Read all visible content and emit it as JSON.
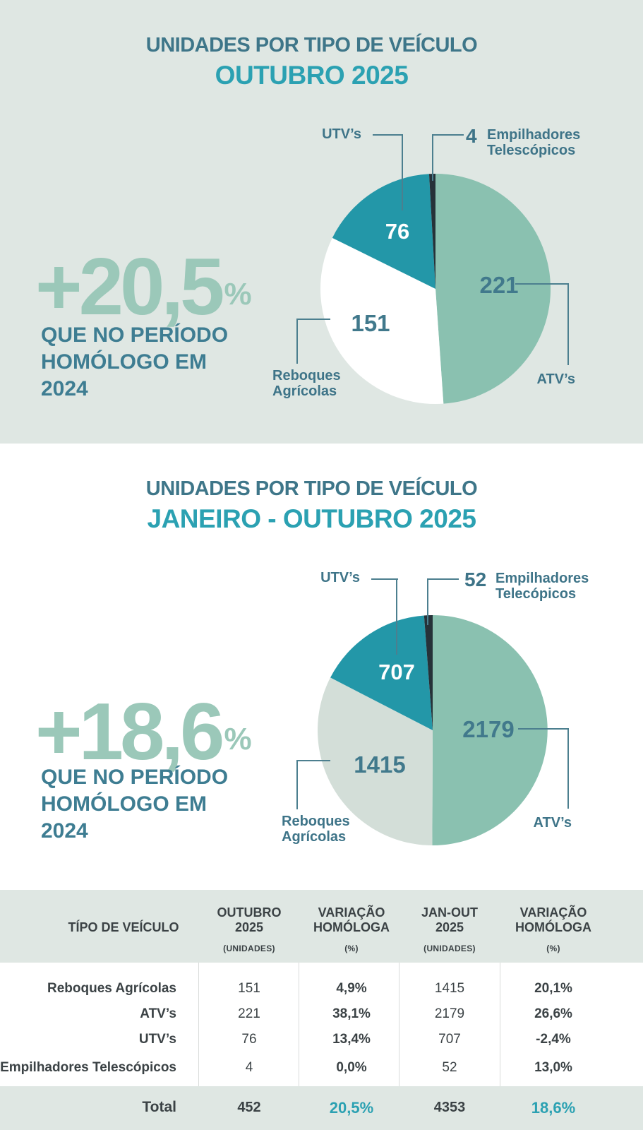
{
  "colors": {
    "panel_background": "#dfe7e3",
    "accent_teal": "#2ba1b2",
    "dark_teal_text": "#3e7689",
    "pale_green_stat": "#9bc8b9",
    "slice_atv": "#8ac1b0",
    "slice_utv": "#2397a8",
    "slice_empilhadores": "#263239",
    "slice_reboques_october": "#ffffff",
    "slice_reboques_ytd": "#d3ded8",
    "callout_line": "#4c7f8f",
    "table_text": "#3b4245"
  },
  "sections": [
    {
      "title_line1": "UNIDADES POR TIPO DE VEÍCULO",
      "title_line2": "OUTUBRO 2025",
      "stat_value": "+20,5",
      "stat_unit": "%",
      "stat_caption": "QUE NO PERÍODO HOMÓLOGO EM 2024"
    },
    {
      "title_line1": "UNIDADES POR TIPO DE VEÍCULO",
      "title_line2": "JANEIRO - OUTUBRO 2025",
      "stat_value": "+18,6",
      "stat_unit": "%",
      "stat_caption": "QUE NO PERÍODO HOMÓLOGO EM 2024"
    }
  ],
  "chart_data": [
    {
      "type": "pie",
      "title": "Unidades por tipo de veículo — Outubro 2025",
      "labels": [
        "ATV’s",
        "Reboques Agrícolas",
        "UTV’s",
        "Empilhadores Telescópicos"
      ],
      "values": [
        221,
        151,
        76,
        4
      ],
      "colors": [
        "#8ac1b0",
        "#ffffff",
        "#2397a8",
        "#263239"
      ],
      "total": 452,
      "start_angle_deg": 0,
      "direction": "clockwise",
      "annotation": "+20,5% que no período homólogo em 2024",
      "callout_labels": {
        "utv": "UTV’s",
        "atv": "ATV’s",
        "emp_line1": "Empilhadores",
        "emp_line2": "Telescópicos",
        "reb_line1": "Reboques",
        "reb_line2": "Agrícolas"
      }
    },
    {
      "type": "pie",
      "title": "Unidades por tipo de veículo — Janeiro - Outubro 2025",
      "labels": [
        "ATV’s",
        "Reboques Agrícolas",
        "UTV’s",
        "Empilhadores Telecópicos"
      ],
      "values": [
        2179,
        1415,
        707,
        52
      ],
      "colors": [
        "#8ac1b0",
        "#d3ded8",
        "#2397a8",
        "#263239"
      ],
      "total": 4353,
      "start_angle_deg": 0,
      "direction": "clockwise",
      "annotation": "+18,6% que no período homólogo em 2024",
      "callout_labels": {
        "utv": "UTV’s",
        "atv": "ATV’s",
        "emp_line1": "Empilhadores",
        "emp_line2": "Telecópicos",
        "reb_line1": "Reboques",
        "reb_line2": "Agrícolas"
      }
    },
    {
      "type": "table",
      "header_lines": [
        [
          "TÍPO DE VEÍCULO",
          "",
          ""
        ],
        [
          "OUTUBRO",
          "2025",
          "(UNIDADES)"
        ],
        [
          "VARIAÇÃO",
          "HOMÓLOGA",
          "(%)"
        ],
        [
          "JAN-OUT",
          "2025",
          "(UNIDADES)"
        ],
        [
          "VARIAÇÃO",
          "HOMÓLOGA",
          "(%)"
        ]
      ],
      "rows": [
        [
          "Reboques Agrícolas",
          "151",
          "4,9%",
          "1415",
          "20,1%"
        ],
        [
          "ATV’s",
          "221",
          "38,1%",
          "2179",
          "26,6%"
        ],
        [
          "UTV’s",
          "76",
          "13,4%",
          "707",
          "-2,4%"
        ],
        [
          "Empilhadores Telescópicos",
          "4",
          "0,0%",
          "52",
          "13,0%"
        ]
      ],
      "total_row": [
        "Total",
        "452",
        "20,5%",
        "4353",
        "18,6%"
      ]
    }
  ]
}
